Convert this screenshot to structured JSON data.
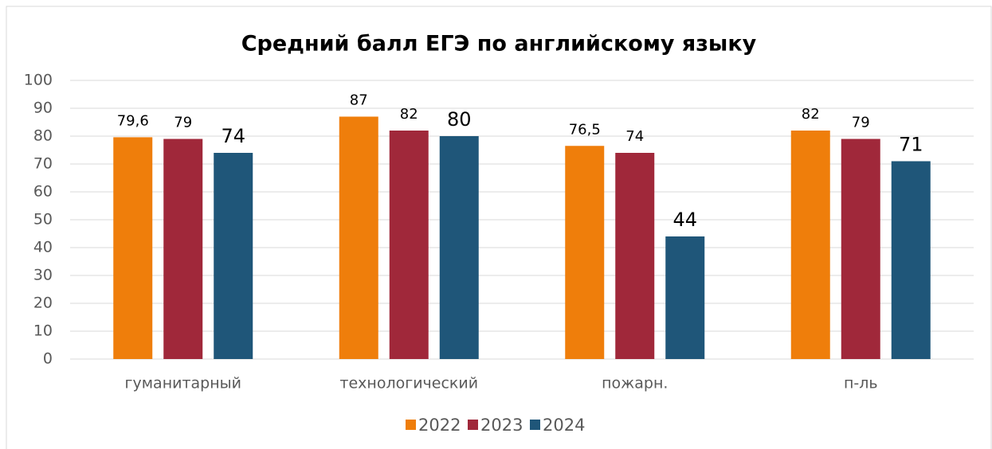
{
  "chart_data": {
    "type": "bar",
    "title": "Средний балл ЕГЭ по английскому языку",
    "categories": [
      "гуманитарный",
      "технологический",
      "пожарн.",
      "п-ль"
    ],
    "series": [
      {
        "name": "2022",
        "color": "#ef7e0b",
        "values": [
          79.6,
          87,
          76.5,
          82
        ],
        "value_labels": [
          "79,6",
          "87",
          "76,5",
          "82"
        ]
      },
      {
        "name": "2023",
        "color": "#a0283a",
        "values": [
          79,
          82,
          74,
          79
        ],
        "value_labels": [
          "79",
          "82",
          "74",
          "79"
        ]
      },
      {
        "name": "2024",
        "color": "#1f5679",
        "values": [
          74,
          80,
          44,
          71
        ],
        "value_labels": [
          "74",
          "80",
          "44",
          "71"
        ]
      }
    ],
    "ylim": [
      0,
      100
    ],
    "yticks": [
      0,
      10,
      20,
      30,
      40,
      50,
      60,
      70,
      80,
      90,
      100
    ],
    "grid": true,
    "legend": "bottom"
  }
}
